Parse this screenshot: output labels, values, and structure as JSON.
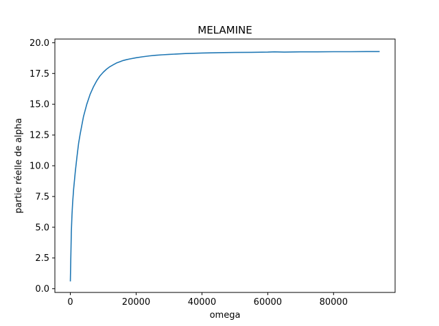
{
  "chart_data": {
    "type": "line",
    "title": "MELAMINE",
    "xlabel": "omega",
    "ylabel": "partie réelle de alpha",
    "xlim": [
      -4700,
      98700
    ],
    "ylim": [
      -0.3,
      20.3
    ],
    "xticks": [
      0,
      20000,
      40000,
      60000,
      80000
    ],
    "xtick_labels": [
      "0",
      "20000",
      "40000",
      "60000",
      "80000"
    ],
    "yticks": [
      0.0,
      2.5,
      5.0,
      7.5,
      10.0,
      12.5,
      15.0,
      17.5,
      20.0
    ],
    "ytick_labels": [
      "0.0",
      "2.5",
      "5.0",
      "7.5",
      "10.0",
      "12.5",
      "15.0",
      "17.5",
      "20.0"
    ],
    "grid": false,
    "legend": "none",
    "series": [
      {
        "color": "#1f77b4",
        "x": [
          0,
          300,
          500,
          700,
          1000,
          1500,
          2000,
          2500,
          3000,
          3500,
          4000,
          5000,
          6000,
          7000,
          8000,
          9000,
          10000,
          11000,
          12000,
          13000,
          14000,
          15000,
          16000,
          17000,
          18000,
          20000,
          22000,
          24000,
          26000,
          28000,
          30000,
          35000,
          40000,
          45000,
          50000,
          55000,
          60000,
          62000,
          65000,
          70000,
          75000,
          80000,
          85000,
          90000,
          94000
        ],
        "y": [
          0.6,
          4.6,
          6.0,
          7.0,
          8.1,
          9.5,
          10.7,
          11.8,
          12.6,
          13.3,
          14.0,
          15.0,
          15.8,
          16.4,
          16.9,
          17.3,
          17.6,
          17.85,
          18.05,
          18.2,
          18.35,
          18.45,
          18.55,
          18.62,
          18.68,
          18.78,
          18.86,
          18.93,
          18.98,
          19.02,
          19.05,
          19.12,
          19.16,
          19.19,
          19.21,
          19.22,
          19.24,
          19.26,
          19.24,
          19.26,
          19.26,
          19.27,
          19.27,
          19.28,
          19.28
        ]
      }
    ]
  }
}
